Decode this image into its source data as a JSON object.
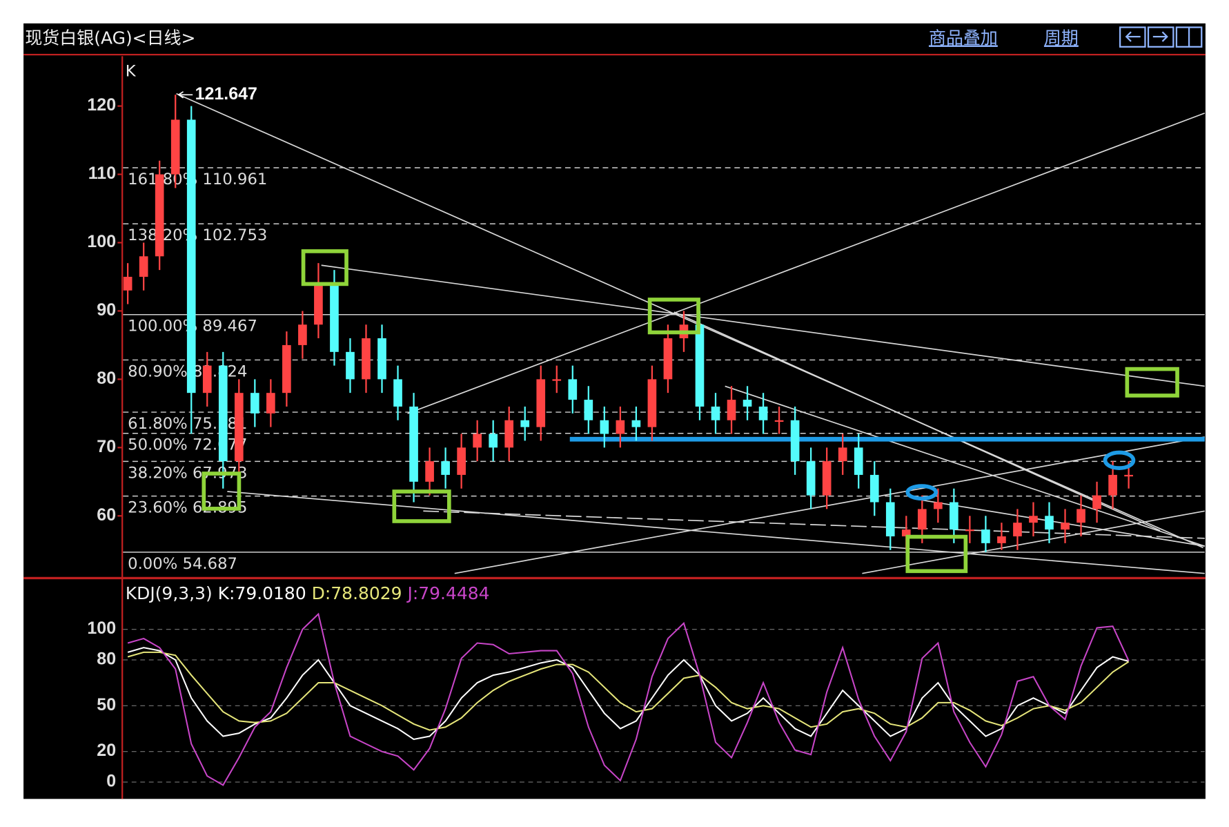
{
  "header": {
    "title": "现货白银(AG)<日线>",
    "links": [
      "商品叠加",
      "周期"
    ]
  },
  "chart_data": [
    {
      "type": "candlestick",
      "label": "K",
      "open": [
        93,
        95,
        98,
        110,
        118,
        78,
        82,
        68,
        78,
        75,
        78,
        85,
        88,
        94,
        84,
        80,
        86,
        80,
        76,
        65,
        68,
        66,
        70,
        72,
        70,
        74,
        73,
        80,
        80,
        77,
        74,
        72,
        74,
        73,
        80,
        86,
        88,
        76,
        74,
        77,
        76,
        74,
        74,
        68,
        63,
        68,
        70,
        66,
        62,
        57,
        58,
        61,
        62,
        58,
        58,
        56,
        57,
        59,
        60,
        58,
        59,
        61,
        63,
        66
      ],
      "high": [
        97,
        100,
        112,
        121.647,
        120,
        84,
        84,
        80,
        80,
        80,
        87,
        90,
        97,
        96,
        86,
        88,
        88,
        82,
        78,
        70,
        70,
        72,
        74,
        74,
        76,
        76,
        82,
        82,
        82,
        79,
        76,
        76,
        76,
        82,
        88,
        90,
        90,
        78,
        79,
        79,
        78,
        76,
        76,
        70,
        70,
        72,
        72,
        68,
        64,
        60,
        63,
        64,
        64,
        60,
        60,
        59,
        61,
        62,
        62,
        61,
        63,
        65,
        68,
        68
      ],
      "low": [
        91,
        93,
        96,
        108,
        72,
        76,
        64,
        66,
        73,
        73,
        76,
        83,
        86,
        82,
        78,
        78,
        78,
        74,
        62,
        63,
        64,
        64,
        68,
        68,
        68,
        71,
        71,
        78,
        75,
        72,
        70,
        70,
        71,
        71,
        78,
        84,
        74,
        72,
        72,
        74,
        72,
        72,
        66,
        61,
        61,
        66,
        64,
        60,
        55,
        55,
        56,
        59,
        56,
        56,
        54.687,
        55,
        55,
        57,
        56,
        56,
        57,
        59,
        61,
        64
      ],
      "close": [
        95,
        98,
        110,
        118,
        78,
        82,
        68,
        78,
        75,
        78,
        85,
        88,
        94,
        84,
        80,
        86,
        80,
        76,
        65,
        68,
        66,
        70,
        72,
        70,
        74,
        73,
        80,
        80,
        77,
        74,
        72,
        74,
        73,
        80,
        86,
        88,
        76,
        74,
        77,
        76,
        74,
        74,
        68,
        63,
        68,
        70,
        66,
        62,
        57,
        58,
        61,
        62,
        58,
        58,
        56,
        57,
        59,
        60,
        58,
        59,
        61,
        63,
        66,
        66
      ],
      "up_color": "#ff4444",
      "down_color": "#54fcfc",
      "ylim": [
        51,
        127.3
      ],
      "yticks": [
        60,
        70,
        80,
        90,
        100,
        110,
        120
      ],
      "grid": false,
      "fib_levels": [
        {
          "value": 110.961,
          "label": "161.80%"
        },
        {
          "value": 102.753,
          "label": "138.20%"
        },
        {
          "value": 89.467,
          "label": "100.00%"
        },
        {
          "value": 82.824,
          "label": "80.90%"
        },
        {
          "value": 75.181,
          "label": "61.80%"
        },
        {
          "value": 72.077,
          "label": "50.00%"
        },
        {
          "value": 67.973,
          "label": "38.20%"
        },
        {
          "value": 62.895,
          "label": "23.60%"
        },
        {
          "value": 54.687,
          "label": "0.00%"
        }
      ]
    },
    {
      "type": "line",
      "title": "KDJ(9,3,3)",
      "series": [
        {
          "name": "K:",
          "color": "#ffffff",
          "value_label": "79.0180",
          "values": [
            85,
            88,
            86,
            80,
            55,
            40,
            30,
            32,
            38,
            42,
            55,
            70,
            80,
            65,
            50,
            45,
            40,
            35,
            28,
            30,
            40,
            55,
            65,
            70,
            72,
            75,
            78,
            80,
            75,
            60,
            45,
            35,
            40,
            55,
            70,
            80,
            70,
            50,
            40,
            45,
            55,
            45,
            35,
            30,
            45,
            60,
            50,
            40,
            30,
            35,
            55,
            65,
            50,
            40,
            30,
            35,
            50,
            55,
            50,
            45,
            60,
            75,
            82,
            79.018
          ]
        },
        {
          "name": "D:",
          "color": "#e6e67a",
          "value_label": "78.8029",
          "values": [
            82,
            85,
            85,
            83,
            70,
            58,
            46,
            40,
            39,
            40,
            45,
            55,
            65,
            65,
            60,
            55,
            50,
            44,
            38,
            34,
            36,
            42,
            52,
            60,
            66,
            70,
            74,
            77,
            77,
            72,
            62,
            52,
            46,
            48,
            58,
            68,
            70,
            62,
            52,
            48,
            50,
            48,
            42,
            36,
            38,
            46,
            48,
            45,
            38,
            36,
            42,
            52,
            52,
            47,
            40,
            37,
            42,
            48,
            50,
            47,
            52,
            62,
            72,
            78.8029
          ]
        },
        {
          "name": "J:",
          "color": "#c845c8",
          "value_label": "79.4484",
          "values": [
            91,
            94,
            88,
            74,
            25,
            4,
            -2,
            16,
            36,
            46,
            75,
            100,
            110,
            65,
            30,
            25,
            20,
            17,
            8,
            22,
            48,
            81,
            91,
            90,
            84,
            85,
            86,
            86,
            71,
            36,
            11,
            1,
            28,
            69,
            94,
            104,
            70,
            26,
            16,
            39,
            65,
            39,
            21,
            18,
            59,
            88,
            54,
            30,
            14,
            33,
            81,
            91,
            46,
            26,
            10,
            31,
            66,
            69,
            50,
            41,
            76,
            101,
            102,
            79.4484
          ]
        }
      ],
      "ylim": [
        -10,
        133
      ],
      "yticks": [
        0,
        20,
        50,
        80,
        100
      ],
      "grid": true
    }
  ]
}
